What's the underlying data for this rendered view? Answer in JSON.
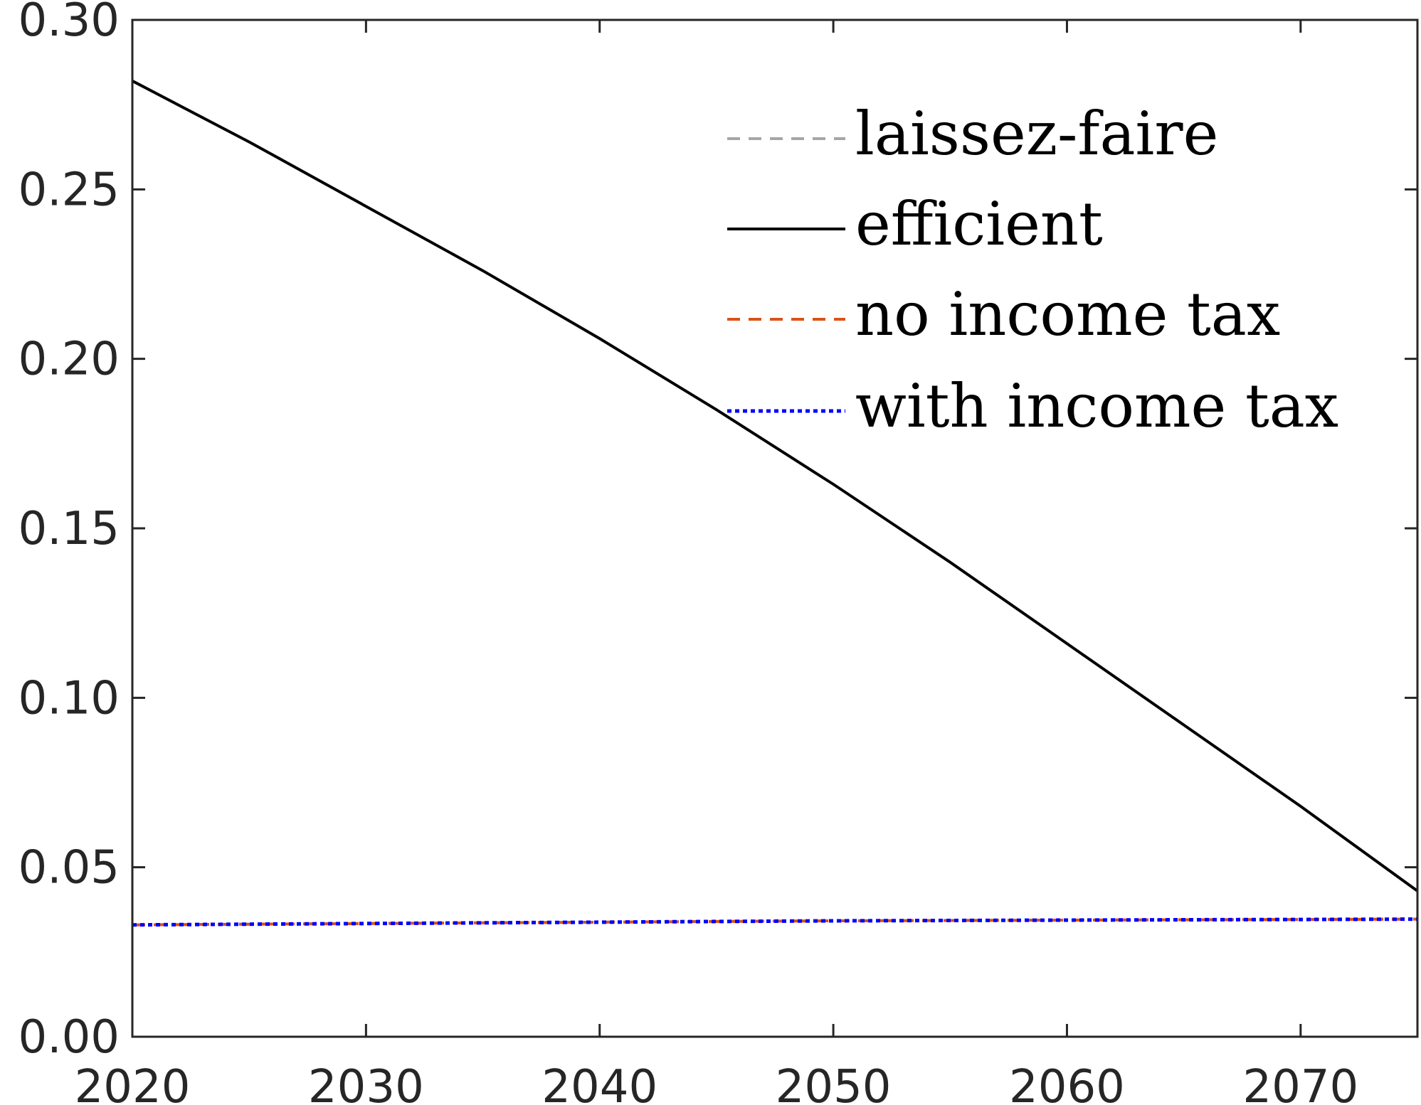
{
  "chart_data": {
    "type": "line",
    "title": "",
    "xlabel": "",
    "ylabel": "",
    "xlim": [
      2020,
      2075
    ],
    "ylim": [
      0.0,
      0.3
    ],
    "grid": false,
    "legend_position": "top-right",
    "x_ticks": [
      2020,
      2030,
      2040,
      2050,
      2060,
      2070
    ],
    "x_tick_labels": [
      "2020",
      "2030",
      "2040",
      "2050",
      "2060",
      "2070"
    ],
    "y_ticks": [
      0.0,
      0.05,
      0.1,
      0.15,
      0.2,
      0.25,
      0.3
    ],
    "y_tick_labels": [
      "0.00",
      "0.05",
      "0.10",
      "0.15",
      "0.20",
      "0.25",
      "0.30"
    ],
    "x": [
      2020,
      2025,
      2030,
      2035,
      2040,
      2045,
      2050,
      2055,
      2060,
      2065,
      2070,
      2075
    ],
    "series": [
      {
        "name": "laissez-faire",
        "color": "#a6a6a6",
        "style": "dashed",
        "values": [
          0.033,
          0.0332,
          0.0334,
          0.0336,
          0.0338,
          0.034,
          0.0342,
          0.0343,
          0.0344,
          0.0345,
          0.0346,
          0.0347
        ]
      },
      {
        "name": "efficient",
        "color": "#000000",
        "style": "solid",
        "values": [
          0.282,
          0.264,
          0.245,
          0.226,
          0.206,
          0.185,
          0.163,
          0.14,
          0.116,
          0.092,
          0.068,
          0.043
        ]
      },
      {
        "name": "no income tax",
        "color": "#d95319",
        "style": "dashed",
        "values": [
          0.033,
          0.0332,
          0.0334,
          0.0336,
          0.0338,
          0.034,
          0.0342,
          0.0343,
          0.0344,
          0.0345,
          0.0346,
          0.0347
        ]
      },
      {
        "name": "with income tax",
        "color": "#0000ff",
        "style": "dotted",
        "values": [
          0.033,
          0.0332,
          0.0334,
          0.0336,
          0.0338,
          0.034,
          0.0342,
          0.0343,
          0.0344,
          0.0345,
          0.0346,
          0.0347
        ]
      }
    ]
  }
}
